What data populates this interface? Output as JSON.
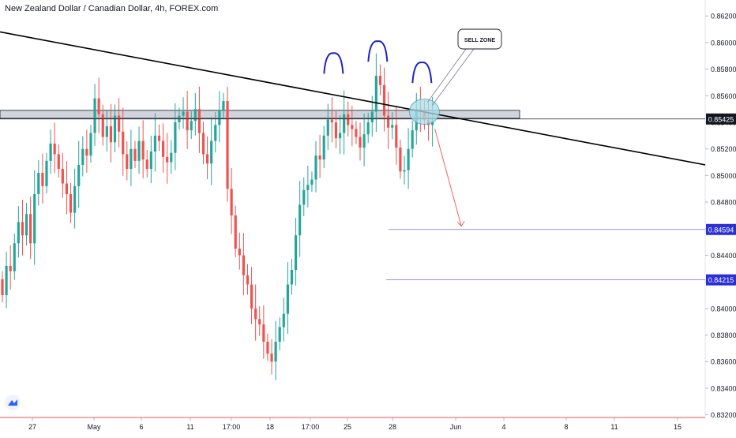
{
  "header": {
    "title": "New Zealand Dollar / Canadian Dollar, 4h, FOREX.com"
  },
  "colors": {
    "bull": "#26a69a",
    "bear": "#ef5350",
    "zone_fill": "#d1d4dc",
    "ellipse_fill": "#a9dde8",
    "arc": "#1e22c8",
    "target_line": "#7b6cf6",
    "target_badge": "#2b2fd6",
    "price_badge": "#131722"
  },
  "annotation": {
    "callout_text": "SELL ZONE"
  },
  "chart_data": {
    "type": "candlestick",
    "symbol": "New Zealand Dollar / Canadian Dollar",
    "timeframe": "4h",
    "ylim": [
      0.8318,
      0.8632
    ],
    "y_ticks": [
      "0.86200",
      "0.86000",
      "0.85800",
      "0.85600",
      "0.85400",
      "0.85200",
      "0.85000",
      "0.84800",
      "0.84600",
      "0.84400",
      "0.84200",
      "0.84000",
      "0.83800",
      "0.83600",
      "0.83400",
      "0.83200"
    ],
    "x_ticks": [
      "27",
      "May",
      "6",
      "11",
      "17:00",
      "18",
      "17:00",
      "25",
      "28",
      "Jun",
      "4",
      "8",
      "11",
      "15"
    ],
    "current_price": {
      "value": 0.85425,
      "label": "0.85425"
    },
    "targets": [
      {
        "value": 0.84594,
        "label": "0.84594"
      },
      {
        "value": 0.84215,
        "label": "0.84215"
      }
    ],
    "sell_zone": {
      "low": 0.8543,
      "high": 0.8549
    },
    "trendline": [
      {
        "bar": -3,
        "price": 0.8608
      },
      {
        "bar": 175,
        "price": 0.8508
      }
    ],
    "head_and_shoulders_peaks": [
      {
        "bar": 82,
        "price": 0.8592
      },
      {
        "bar": 93,
        "price": 0.8601
      },
      {
        "bar": 104,
        "price": 0.8585
      }
    ],
    "projection": {
      "from": {
        "bar": 107,
        "price": 0.8535
      },
      "to": {
        "bar": 113,
        "price": 0.8462
      }
    },
    "close": [
      0.841,
      0.8432,
      0.8428,
      0.8449,
      0.8465,
      0.8455,
      0.8471,
      0.8449,
      0.8486,
      0.8502,
      0.8492,
      0.8511,
      0.8524,
      0.8516,
      0.8505,
      0.8494,
      0.8486,
      0.8472,
      0.8492,
      0.8508,
      0.852,
      0.8515,
      0.8532,
      0.8558,
      0.8546,
      0.8529,
      0.8537,
      0.8525,
      0.8545,
      0.8533,
      0.8516,
      0.8505,
      0.852,
      0.8511,
      0.8526,
      0.8512,
      0.8505,
      0.8518,
      0.853,
      0.8526,
      0.8514,
      0.851,
      0.8517,
      0.854,
      0.8545,
      0.8548,
      0.8534,
      0.8541,
      0.855,
      0.8532,
      0.8516,
      0.8509,
      0.8526,
      0.8538,
      0.8549,
      0.8556,
      0.849,
      0.847,
      0.8445,
      0.844,
      0.8425,
      0.8418,
      0.84,
      0.8392,
      0.8388,
      0.8375,
      0.8366,
      0.836,
      0.8375,
      0.8386,
      0.8396,
      0.8418,
      0.8429,
      0.8455,
      0.8478,
      0.8489,
      0.8493,
      0.8497,
      0.8515,
      0.8512,
      0.853,
      0.8542,
      0.854,
      0.8528,
      0.8532,
      0.8546,
      0.8538,
      0.8535,
      0.8529,
      0.8521,
      0.8531,
      0.854,
      0.8548,
      0.8575,
      0.8568,
      0.8545,
      0.8536,
      0.8538,
      0.8521,
      0.8503,
      0.8504,
      0.852,
      0.8534,
      0.855,
      0.8548,
      0.8542,
      0.8538,
      0.8541
    ]
  }
}
